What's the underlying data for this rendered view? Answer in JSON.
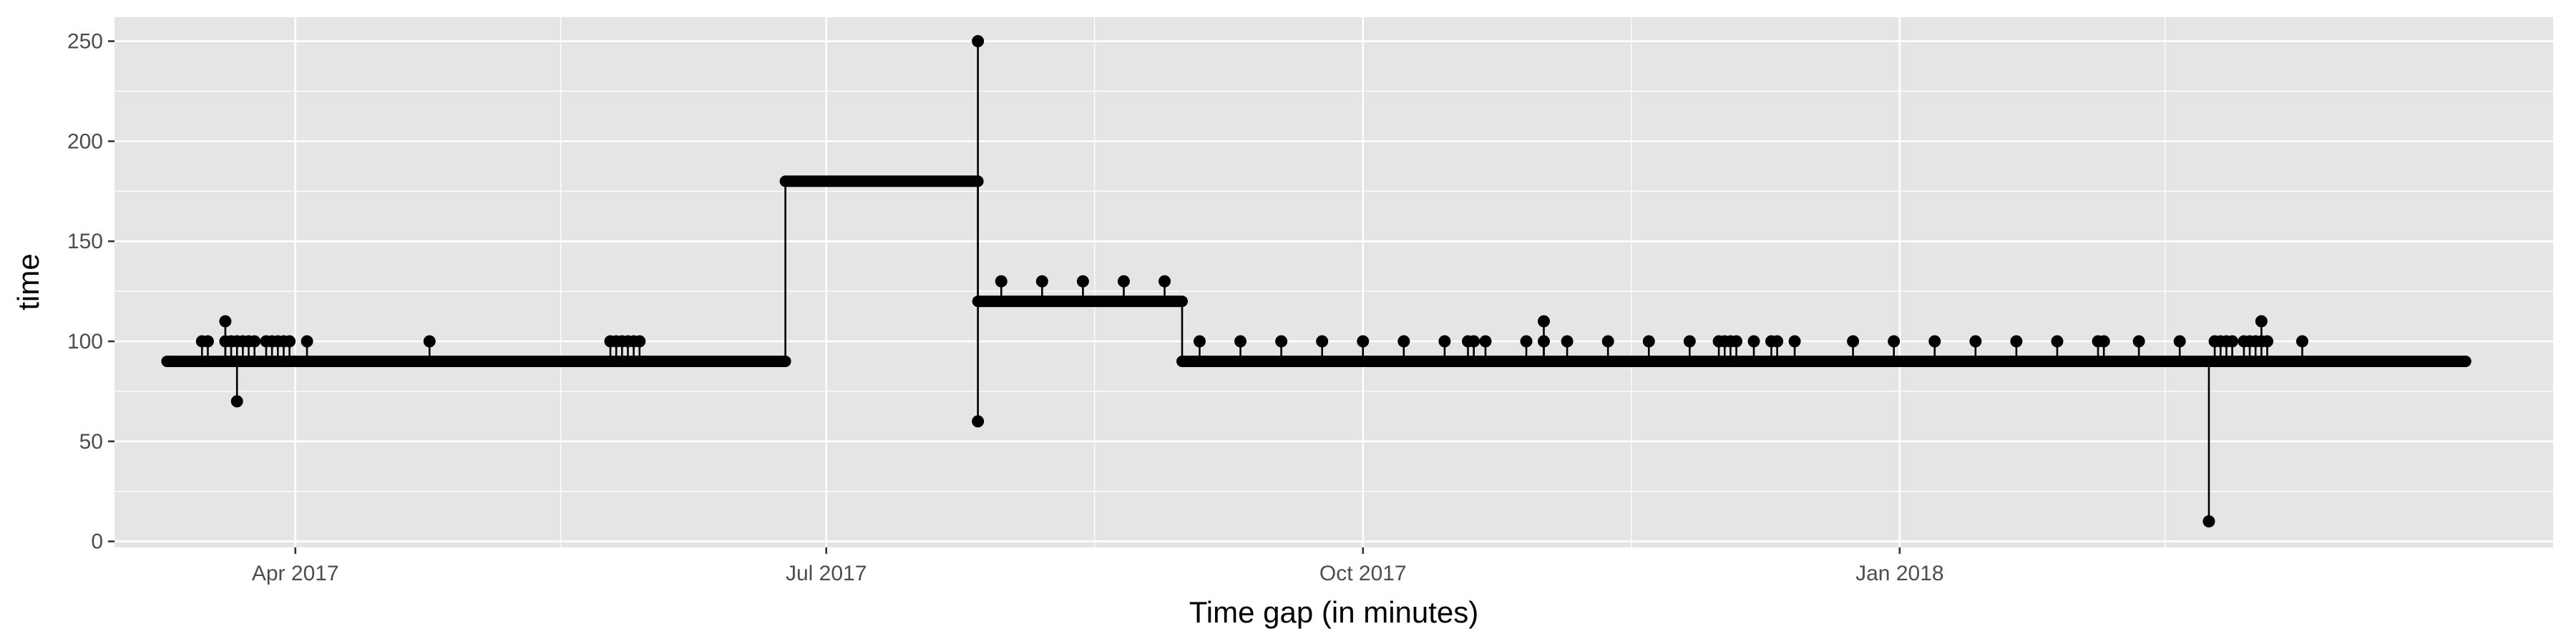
{
  "chart_data": {
    "type": "line",
    "xlabel": "Time gap (in minutes)",
    "ylabel": "time",
    "xlim": [
      "2017-03-01",
      "2018-04-23"
    ],
    "ylim": [
      -3,
      262
    ],
    "x_ticks": [
      {
        "date": "2017-04-01",
        "label": "Apr 2017"
      },
      {
        "date": "2017-07-01",
        "label": "Jul 2017"
      },
      {
        "date": "2017-10-01",
        "label": "Oct 2017"
      },
      {
        "date": "2018-01-01",
        "label": "Jan 2018"
      }
    ],
    "y_ticks": [
      0,
      50,
      100,
      150,
      200,
      250
    ],
    "grid": true,
    "colors": {
      "panel": "#e5e5e5",
      "grid": "#ffffff",
      "ink": "#000000",
      "tick_text": "#4d4d4d"
    },
    "baseline_segments": [
      {
        "x_start": "2017-03-10",
        "x_end": "2017-06-24",
        "y": 90
      },
      {
        "x_start": "2017-06-24",
        "x_end": "2017-07-27",
        "y": 180
      },
      {
        "x_start": "2017-07-27",
        "x_end": "2017-08-31",
        "y": 120
      },
      {
        "x_start": "2017-08-31",
        "x_end": "2018-04-08",
        "y": 90
      }
    ],
    "series": [
      {
        "points": [
          {
            "x": "2017-03-16",
            "y": 100
          },
          {
            "x": "2017-03-17",
            "y": 100
          },
          {
            "x": "2017-03-20",
            "y": 110
          },
          {
            "x": "2017-03-20",
            "y": 100
          },
          {
            "x": "2017-03-21",
            "y": 100
          },
          {
            "x": "2017-03-22",
            "y": 70
          },
          {
            "x": "2017-03-22",
            "y": 100
          },
          {
            "x": "2017-03-23",
            "y": 100
          },
          {
            "x": "2017-03-24",
            "y": 100
          },
          {
            "x": "2017-03-25",
            "y": 100
          },
          {
            "x": "2017-03-27",
            "y": 100
          },
          {
            "x": "2017-03-28",
            "y": 100
          },
          {
            "x": "2017-03-29",
            "y": 100
          },
          {
            "x": "2017-03-30",
            "y": 100
          },
          {
            "x": "2017-03-31",
            "y": 100
          },
          {
            "x": "2017-04-03",
            "y": 100
          },
          {
            "x": "2017-04-24",
            "y": 100
          },
          {
            "x": "2017-05-25",
            "y": 100
          },
          {
            "x": "2017-05-26",
            "y": 100
          },
          {
            "x": "2017-05-27",
            "y": 100
          },
          {
            "x": "2017-05-28",
            "y": 100
          },
          {
            "x": "2017-05-29",
            "y": 100
          },
          {
            "x": "2017-05-30",
            "y": 100
          },
          {
            "x": "2017-07-27",
            "y": 250
          },
          {
            "x": "2017-07-27",
            "y": 60
          },
          {
            "x": "2017-07-31",
            "y": 130
          },
          {
            "x": "2017-08-07",
            "y": 130
          },
          {
            "x": "2017-08-14",
            "y": 130
          },
          {
            "x": "2017-08-21",
            "y": 130
          },
          {
            "x": "2017-08-28",
            "y": 130
          },
          {
            "x": "2017-09-03",
            "y": 100
          },
          {
            "x": "2017-09-10",
            "y": 100
          },
          {
            "x": "2017-09-17",
            "y": 100
          },
          {
            "x": "2017-09-24",
            "y": 100
          },
          {
            "x": "2017-10-01",
            "y": 100
          },
          {
            "x": "2017-10-08",
            "y": 100
          },
          {
            "x": "2017-10-15",
            "y": 100
          },
          {
            "x": "2017-10-19",
            "y": 100
          },
          {
            "x": "2017-10-20",
            "y": 100
          },
          {
            "x": "2017-10-22",
            "y": 100
          },
          {
            "x": "2017-10-29",
            "y": 100
          },
          {
            "x": "2017-11-01",
            "y": 110
          },
          {
            "x": "2017-11-01",
            "y": 100
          },
          {
            "x": "2017-11-05",
            "y": 100
          },
          {
            "x": "2017-11-12",
            "y": 100
          },
          {
            "x": "2017-11-19",
            "y": 100
          },
          {
            "x": "2017-11-26",
            "y": 100
          },
          {
            "x": "2017-12-01",
            "y": 100
          },
          {
            "x": "2017-12-02",
            "y": 100
          },
          {
            "x": "2017-12-03",
            "y": 100
          },
          {
            "x": "2017-12-04",
            "y": 100
          },
          {
            "x": "2017-12-07",
            "y": 100
          },
          {
            "x": "2017-12-10",
            "y": 100
          },
          {
            "x": "2017-12-11",
            "y": 100
          },
          {
            "x": "2017-12-14",
            "y": 100
          },
          {
            "x": "2017-12-24",
            "y": 100
          },
          {
            "x": "2017-12-31",
            "y": 100
          },
          {
            "x": "2018-01-07",
            "y": 100
          },
          {
            "x": "2018-01-14",
            "y": 100
          },
          {
            "x": "2018-01-21",
            "y": 100
          },
          {
            "x": "2018-01-28",
            "y": 100
          },
          {
            "x": "2018-02-04",
            "y": 100
          },
          {
            "x": "2018-02-05",
            "y": 100
          },
          {
            "x": "2018-02-11",
            "y": 100
          },
          {
            "x": "2018-02-18",
            "y": 100
          },
          {
            "x": "2018-02-23",
            "y": 10
          },
          {
            "x": "2018-02-24",
            "y": 100
          },
          {
            "x": "2018-02-25",
            "y": 100
          },
          {
            "x": "2018-02-26",
            "y": 100
          },
          {
            "x": "2018-02-27",
            "y": 100
          },
          {
            "x": "2018-03-01",
            "y": 100
          },
          {
            "x": "2018-03-02",
            "y": 100
          },
          {
            "x": "2018-03-03",
            "y": 100
          },
          {
            "x": "2018-03-04",
            "y": 110
          },
          {
            "x": "2018-03-04",
            "y": 100
          },
          {
            "x": "2018-03-05",
            "y": 100
          },
          {
            "x": "2018-03-11",
            "y": 100
          }
        ]
      }
    ]
  }
}
